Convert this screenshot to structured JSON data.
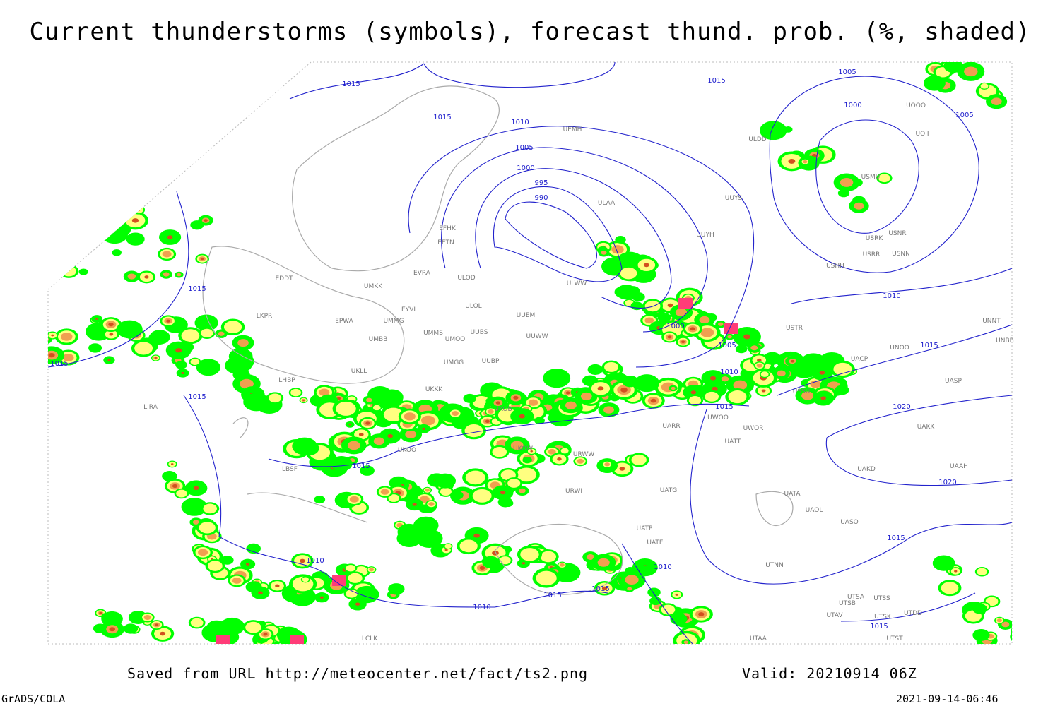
{
  "header": {
    "title": "Current thunderstorms (symbols), forecast thund. prob. (%, shaded)"
  },
  "footer": {
    "source": "Saved from URL http://meteocenter.net/fact/ts2.png",
    "valid": "Valid: 20210914 06Z",
    "software": "GrADS/COLA",
    "timestamp": "2021-09-14-06:46"
  },
  "isobar_labels": [
    "1015",
    "1015",
    "1005",
    "1015",
    "1010",
    "1000",
    "1005",
    "1005",
    "1000",
    "995",
    "990",
    "1015",
    "1010",
    "1000",
    "1005",
    "1015",
    "1015",
    "1010",
    "1015",
    "1015",
    "1020",
    "1015",
    "1020",
    "1015",
    "1010",
    "1010",
    "1015",
    "1015",
    "1010",
    "1015"
  ],
  "stations": [
    "UEMH",
    "ULDD",
    "UOOO",
    "UOII",
    "ULAA",
    "UUYS",
    "USMU",
    "EFHK",
    "EETN",
    "UUYH",
    "USNR",
    "USRK",
    "USNN",
    "USRR",
    "USHH",
    "EVRA",
    "ULOD",
    "EDDT",
    "UMKK",
    "ULWW",
    "EYVI",
    "ULOL",
    "UUEM",
    "LKPR",
    "EPWA",
    "UMMG",
    "USTR",
    "UNNT",
    "UMMS",
    "UMOO",
    "UUBS",
    "UUWW",
    "UMBB",
    "UNBB",
    "UNOO",
    "UACP",
    "UMGG",
    "UUBP",
    "UKLL",
    "LHBP",
    "UKKK",
    "UASP",
    "UKOB",
    "USSU",
    "UARR",
    "UWOO",
    "UWOR",
    "UAKK",
    "UATT",
    "UKOW",
    "URWW",
    "UKOO",
    "LBSF",
    "UAKD",
    "UAAH",
    "URWI",
    "UATG",
    "UATA",
    "UAOL",
    "UASO",
    "UATP",
    "UATE",
    "UTNN",
    "UTSA",
    "UTSS",
    "UTSB",
    "UTAV",
    "UTSK",
    "UTDD",
    "UTAA",
    "UTST",
    "LCLK",
    "LIRA"
  ]
}
